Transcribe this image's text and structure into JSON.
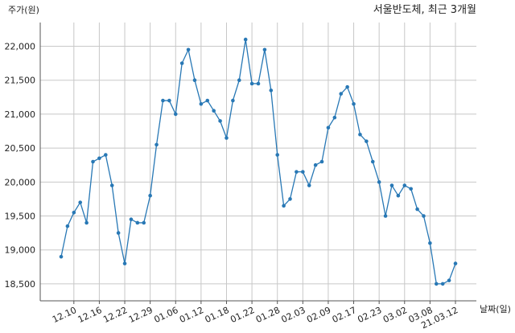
{
  "chart_data": {
    "type": "line",
    "title": "서울반도체, 최근 3개월",
    "ylabel": "주가(원)",
    "xlabel": "날짜(일)",
    "ylim": [
      18250,
      22350
    ],
    "yticks": [
      18500,
      19000,
      19500,
      20000,
      20500,
      21000,
      21500,
      22000
    ],
    "ytick_labels": [
      "18,500",
      "19,000",
      "19,500",
      "20,000",
      "20,500",
      "21,000",
      "21,500",
      "22,000"
    ],
    "xtick_labels": [
      "12.10",
      "12.16",
      "12.22",
      "12.29",
      "01.06",
      "01.12",
      "01.18",
      "01.22",
      "01.28",
      "02.03",
      "02.09",
      "02.17",
      "02.23",
      "03.02",
      "03.08",
      "21.03.12"
    ],
    "xtick_positions": [
      2,
      6,
      10,
      14,
      18,
      22,
      26,
      30,
      34,
      38,
      42,
      46,
      50,
      54,
      58,
      62
    ],
    "grid": true,
    "color": "#2878b5",
    "series": [
      {
        "values": [
          18900,
          19350,
          19550,
          19700,
          19400,
          20300,
          20350,
          20400,
          19950,
          19250,
          18800,
          19450,
          19400,
          19400,
          19800,
          20550,
          21200,
          21200,
          21000,
          21750,
          21950,
          21500,
          21150,
          21200,
          21050,
          20900,
          20650,
          21200,
          21500,
          22100,
          21450,
          21450,
          21950,
          21350,
          20400,
          19650,
          19750,
          20150,
          20150,
          19950,
          20250,
          20300,
          20800,
          20950,
          21300,
          21400,
          21150,
          20700,
          20600,
          20300,
          20000,
          19500,
          19950,
          19800,
          19950,
          19900,
          19600,
          19500,
          19100,
          18500,
          18500,
          18550,
          18800
        ]
      }
    ]
  }
}
